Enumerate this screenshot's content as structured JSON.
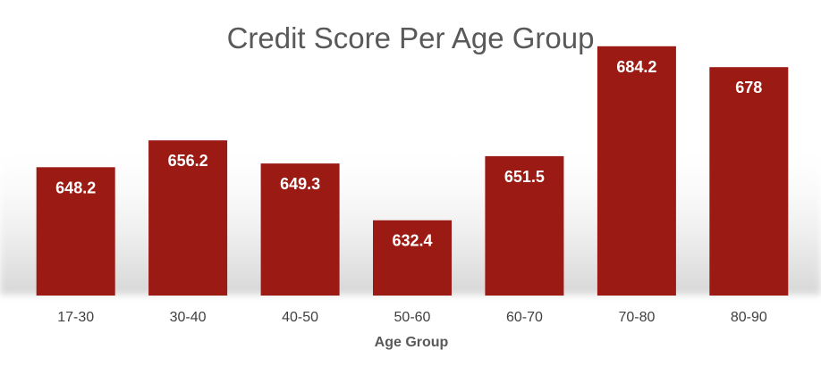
{
  "chart_data": {
    "type": "bar",
    "title": "Credit Score Per Age Group",
    "xlabel": "Age Group",
    "ylabel": "",
    "categories": [
      "17-30",
      "30-40",
      "40-50",
      "50-60",
      "60-70",
      "70-80",
      "80-90"
    ],
    "values": [
      648.2,
      656.2,
      649.3,
      632.4,
      651.5,
      684.2,
      678
    ],
    "value_labels": [
      "648.2",
      "656.2",
      "649.3",
      "632.4",
      "651.5",
      "684.2",
      "678"
    ],
    "ylim": [
      610,
      690
    ],
    "grid": false,
    "legend": "none",
    "bar_color": "#9B1B14",
    "shadow_color": "#D9D9D9"
  }
}
